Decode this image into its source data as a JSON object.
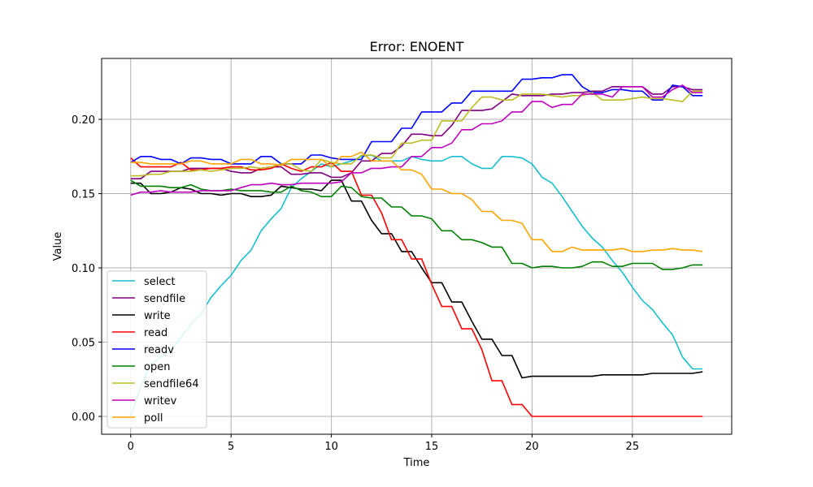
{
  "chart_data": {
    "type": "line",
    "title": "Error: ENOENT",
    "xlabel": "Time",
    "ylabel": "Value",
    "xlim": [
      -1.45,
      29.95
    ],
    "ylim": [
      -0.012,
      0.241
    ],
    "xticks": [
      0,
      5,
      10,
      15,
      20,
      25
    ],
    "yticks": [
      0.0,
      0.05,
      0.1,
      0.15,
      0.2
    ],
    "ytick_labels": [
      "0.00",
      "0.05",
      "0.10",
      "0.15",
      "0.20"
    ],
    "grid": true,
    "legend_position": "lower-left",
    "x": [
      0,
      0.5,
      1,
      1.5,
      2,
      2.5,
      3,
      3.5,
      4,
      4.5,
      5,
      5.5,
      6,
      6.5,
      7,
      7.5,
      8,
      8.5,
      9,
      9.5,
      10,
      10.5,
      11,
      11.5,
      12,
      12.5,
      13,
      13.5,
      14,
      14.5,
      15,
      15.5,
      16,
      16.5,
      17,
      17.5,
      18,
      18.5,
      19,
      19.5,
      20,
      20.5,
      21,
      21.5,
      22,
      22.5,
      23,
      23.5,
      24,
      24.5,
      25,
      25.5,
      26,
      26.5,
      27,
      27.5,
      28,
      28.5
    ],
    "series": [
      {
        "name": "select",
        "color": "#17becf",
        "values": [
          0.0,
          0.02,
          0.035,
          0.04,
          0.045,
          0.053,
          0.062,
          0.069,
          0.08,
          0.088,
          0.095,
          0.105,
          0.112,
          0.125,
          0.133,
          0.14,
          0.154,
          0.16,
          0.165,
          0.17,
          0.168,
          0.17,
          0.172,
          0.175,
          0.176,
          0.172,
          0.172,
          0.172,
          0.175,
          0.173,
          0.172,
          0.172,
          0.175,
          0.175,
          0.17,
          0.167,
          0.167,
          0.175,
          0.175,
          0.174,
          0.17,
          0.161,
          0.157,
          0.148,
          0.138,
          0.128,
          0.12,
          0.114,
          0.105,
          0.097,
          0.087,
          0.078,
          0.072,
          0.063,
          0.055,
          0.04,
          0.032,
          0.032
        ]
      },
      {
        "name": "sendfile",
        "color": "#800080",
        "values": [
          0.16,
          0.16,
          0.165,
          0.165,
          0.165,
          0.165,
          0.167,
          0.167,
          0.167,
          0.167,
          0.165,
          0.164,
          0.164,
          0.167,
          0.168,
          0.168,
          0.163,
          0.163,
          0.164,
          0.164,
          0.161,
          0.161,
          0.164,
          0.172,
          0.172,
          0.177,
          0.177,
          0.182,
          0.19,
          0.19,
          0.189,
          0.189,
          0.196,
          0.206,
          0.206,
          0.206,
          0.207,
          0.212,
          0.217,
          0.216,
          0.216,
          0.216,
          0.217,
          0.217,
          0.218,
          0.218,
          0.219,
          0.219,
          0.222,
          0.222,
          0.222,
          0.222,
          0.217,
          0.217,
          0.222,
          0.222,
          0.22,
          0.22
        ]
      },
      {
        "name": "write",
        "color": "#000000",
        "values": [
          0.157,
          0.157,
          0.15,
          0.15,
          0.151,
          0.154,
          0.153,
          0.15,
          0.15,
          0.149,
          0.15,
          0.15,
          0.148,
          0.148,
          0.149,
          0.155,
          0.154,
          0.153,
          0.153,
          0.152,
          0.159,
          0.159,
          0.145,
          0.145,
          0.132,
          0.123,
          0.123,
          0.111,
          0.111,
          0.1,
          0.09,
          0.09,
          0.077,
          0.077,
          0.064,
          0.052,
          0.052,
          0.041,
          0.041,
          0.026,
          0.027,
          0.027,
          0.027,
          0.027,
          0.027,
          0.027,
          0.027,
          0.028,
          0.028,
          0.028,
          0.028,
          0.028,
          0.029,
          0.029,
          0.029,
          0.029,
          0.029,
          0.03
        ]
      },
      {
        "name": "read",
        "color": "#ff0000",
        "values": [
          0.174,
          0.168,
          0.168,
          0.168,
          0.168,
          0.171,
          0.166,
          0.166,
          0.167,
          0.167,
          0.168,
          0.168,
          0.166,
          0.166,
          0.167,
          0.17,
          0.167,
          0.165,
          0.168,
          0.168,
          0.171,
          0.165,
          0.165,
          0.149,
          0.149,
          0.137,
          0.119,
          0.119,
          0.106,
          0.106,
          0.089,
          0.074,
          0.074,
          0.059,
          0.059,
          0.045,
          0.024,
          0.024,
          0.008,
          0.008,
          0.0,
          0.0,
          0.0,
          0.0,
          0.0,
          0.0,
          0.0,
          0.0,
          0.0,
          0.0,
          0.0,
          0.0,
          0.0,
          0.0,
          0.0,
          0.0,
          0.0,
          0.0
        ]
      },
      {
        "name": "readv",
        "color": "#0000ff",
        "values": [
          0.171,
          0.175,
          0.175,
          0.173,
          0.173,
          0.17,
          0.174,
          0.174,
          0.173,
          0.173,
          0.17,
          0.17,
          0.17,
          0.175,
          0.175,
          0.17,
          0.17,
          0.17,
          0.176,
          0.176,
          0.174,
          0.173,
          0.173,
          0.173,
          0.185,
          0.185,
          0.185,
          0.194,
          0.194,
          0.205,
          0.205,
          0.205,
          0.211,
          0.211,
          0.219,
          0.219,
          0.219,
          0.219,
          0.219,
          0.227,
          0.227,
          0.228,
          0.228,
          0.23,
          0.23,
          0.222,
          0.218,
          0.218,
          0.22,
          0.22,
          0.219,
          0.219,
          0.213,
          0.213,
          0.223,
          0.222,
          0.216,
          0.216
        ]
      },
      {
        "name": "open",
        "color": "#008000",
        "values": [
          0.159,
          0.155,
          0.155,
          0.155,
          0.154,
          0.154,
          0.156,
          0.153,
          0.152,
          0.152,
          0.153,
          0.152,
          0.152,
          0.152,
          0.151,
          0.151,
          0.155,
          0.152,
          0.151,
          0.148,
          0.148,
          0.155,
          0.154,
          0.148,
          0.147,
          0.147,
          0.141,
          0.141,
          0.135,
          0.135,
          0.133,
          0.125,
          0.125,
          0.119,
          0.119,
          0.117,
          0.114,
          0.114,
          0.103,
          0.103,
          0.1,
          0.101,
          0.101,
          0.1,
          0.1,
          0.101,
          0.104,
          0.104,
          0.101,
          0.101,
          0.103,
          0.103,
          0.103,
          0.099,
          0.099,
          0.1,
          0.102,
          0.102
        ]
      },
      {
        "name": "sendfile64",
        "color": "#bcbd22",
        "values": [
          0.162,
          0.162,
          0.163,
          0.163,
          0.165,
          0.165,
          0.165,
          0.166,
          0.165,
          0.166,
          0.167,
          0.167,
          0.168,
          0.167,
          0.168,
          0.17,
          0.17,
          0.166,
          0.165,
          0.173,
          0.171,
          0.17,
          0.17,
          0.176,
          0.176,
          0.174,
          0.174,
          0.184,
          0.184,
          0.186,
          0.186,
          0.199,
          0.199,
          0.199,
          0.208,
          0.215,
          0.215,
          0.213,
          0.213,
          0.217,
          0.217,
          0.217,
          0.216,
          0.215,
          0.216,
          0.216,
          0.218,
          0.213,
          0.213,
          0.213,
          0.214,
          0.215,
          0.214,
          0.214,
          0.213,
          0.212,
          0.219,
          0.219
        ]
      },
      {
        "name": "writev",
        "color": "#bf00bf",
        "values": [
          0.149,
          0.151,
          0.151,
          0.152,
          0.151,
          0.151,
          0.151,
          0.152,
          0.152,
          0.152,
          0.152,
          0.154,
          0.156,
          0.156,
          0.157,
          0.156,
          0.156,
          0.157,
          0.157,
          0.157,
          0.157,
          0.158,
          0.164,
          0.164,
          0.167,
          0.167,
          0.168,
          0.168,
          0.175,
          0.175,
          0.181,
          0.181,
          0.184,
          0.193,
          0.193,
          0.197,
          0.197,
          0.199,
          0.205,
          0.205,
          0.212,
          0.212,
          0.208,
          0.21,
          0.21,
          0.217,
          0.217,
          0.217,
          0.215,
          0.222,
          0.222,
          0.222,
          0.215,
          0.215,
          0.22,
          0.223,
          0.218,
          0.218
        ]
      },
      {
        "name": "poll",
        "color": "#ffa500",
        "values": [
          0.171,
          0.171,
          0.17,
          0.17,
          0.17,
          0.17,
          0.172,
          0.172,
          0.17,
          0.17,
          0.17,
          0.173,
          0.173,
          0.17,
          0.17,
          0.169,
          0.173,
          0.173,
          0.173,
          0.173,
          0.168,
          0.175,
          0.175,
          0.178,
          0.172,
          0.172,
          0.172,
          0.166,
          0.166,
          0.163,
          0.153,
          0.153,
          0.15,
          0.15,
          0.146,
          0.138,
          0.138,
          0.132,
          0.132,
          0.13,
          0.119,
          0.119,
          0.111,
          0.111,
          0.114,
          0.112,
          0.112,
          0.112,
          0.112,
          0.113,
          0.111,
          0.111,
          0.112,
          0.112,
          0.113,
          0.112,
          0.112,
          0.111
        ]
      }
    ]
  }
}
